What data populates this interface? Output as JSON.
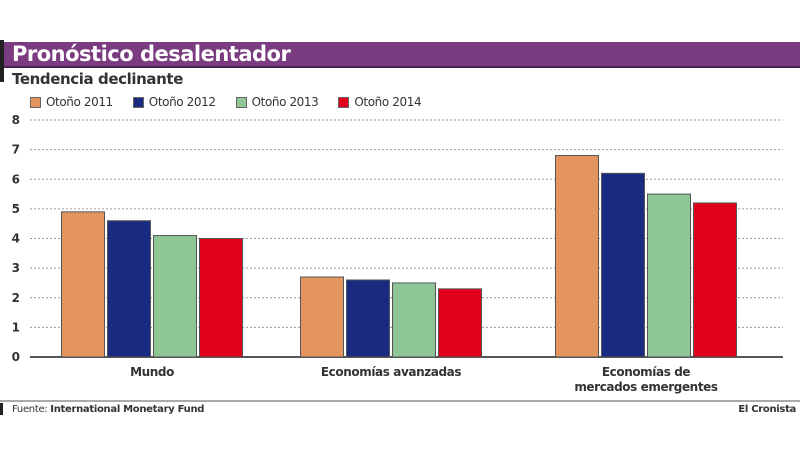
{
  "header": {
    "title": "Pronóstico desalentador",
    "subtitle": "Tendencia declinante"
  },
  "footer": {
    "source_label": "Fuente:",
    "source_value": "International Monetary Fund",
    "publisher": "El Cronista"
  },
  "chart_data": {
    "type": "bar",
    "title": "Pronóstico desalentador",
    "subtitle": "Tendencia declinante",
    "xlabel": "",
    "ylabel": "",
    "ylim": [
      0,
      8
    ],
    "yticks": [
      0,
      1,
      2,
      3,
      4,
      5,
      6,
      7,
      8
    ],
    "grid": true,
    "legend_position": "top-left",
    "categories": [
      "Mundo",
      "Economías avanzadas",
      "Economías de mercados emergentes"
    ],
    "category_label_lines": [
      [
        "Mundo"
      ],
      [
        "Economías avanzadas"
      ],
      [
        "Economías de",
        "mercados emergentes"
      ]
    ],
    "series": [
      {
        "name": "Otoño 2011",
        "color": "#e4955f",
        "values": [
          4.9,
          2.7,
          6.8
        ]
      },
      {
        "name": "Otoño 2012",
        "color": "#1a2a80",
        "values": [
          4.6,
          2.6,
          6.2
        ]
      },
      {
        "name": "Otoño 2013",
        "color": "#8ec795",
        "values": [
          4.1,
          2.5,
          5.5
        ]
      },
      {
        "name": "Otoño 2014",
        "color": "#e0001b",
        "values": [
          4.0,
          2.3,
          5.2
        ]
      }
    ]
  }
}
